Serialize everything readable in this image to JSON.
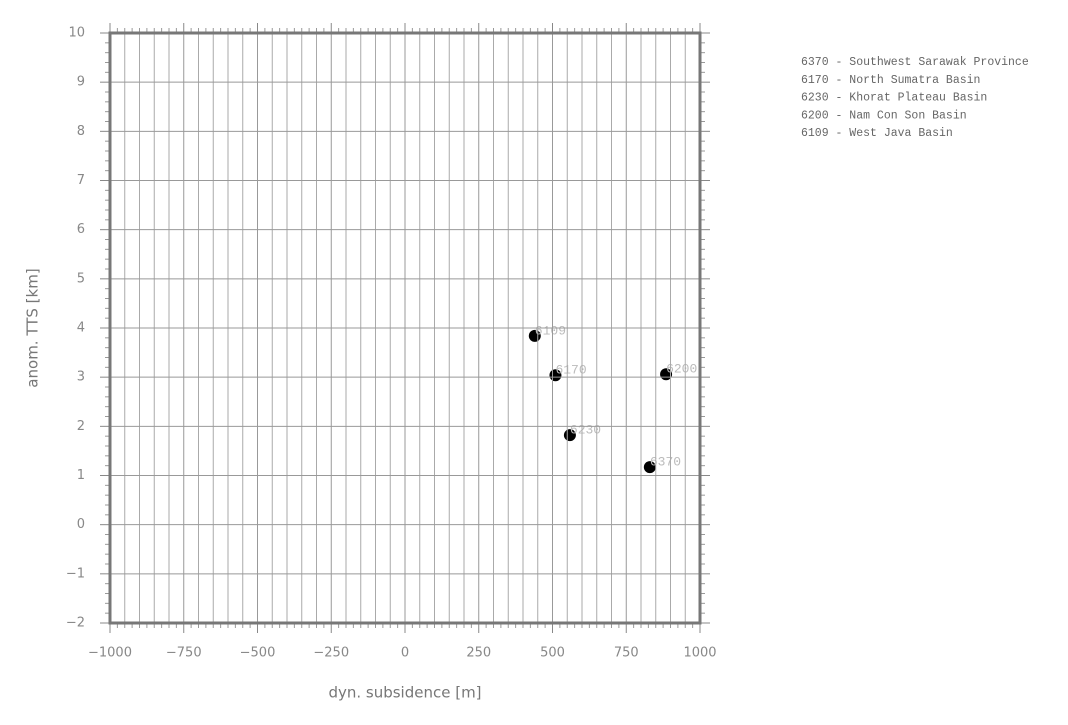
{
  "chart_data": {
    "type": "scatter",
    "x_label": "dyn. subsidence [m]",
    "y_label": "anom. TTS [km]",
    "x": [
      830,
      510,
      559,
      885,
      440
    ],
    "values": [
      1.17,
      3.04,
      1.82,
      3.06,
      3.84
    ],
    "point_labels": [
      "6370",
      "6170",
      "6230",
      "6200",
      "6109"
    ],
    "color": "#000000",
    "legend_entries": [
      "6370 - Southwest Sarawak Province",
      "6170 - North Sumatra Basin",
      "6230 - Khorat Plateau Basin",
      "6200 - Nam Con Son Basin",
      "6109 - West Java Basin"
    ],
    "xlim": [
      -1000,
      1000
    ],
    "xticks": [
      {
        "value": -1000,
        "label": "−1000"
      },
      {
        "value": -750,
        "label": "−750"
      },
      {
        "value": -500,
        "label": "−500"
      },
      {
        "value": -250,
        "label": "−250"
      },
      0,
      250,
      500,
      750,
      1000
    ],
    "ylim": [
      -2,
      10
    ],
    "yticks": [
      {
        "value": -2,
        "label": "−2"
      },
      {
        "value": -1,
        "label": "−1"
      },
      0,
      1,
      2,
      3,
      4,
      5,
      6,
      7,
      8,
      9,
      10
    ],
    "grid": true
  }
}
